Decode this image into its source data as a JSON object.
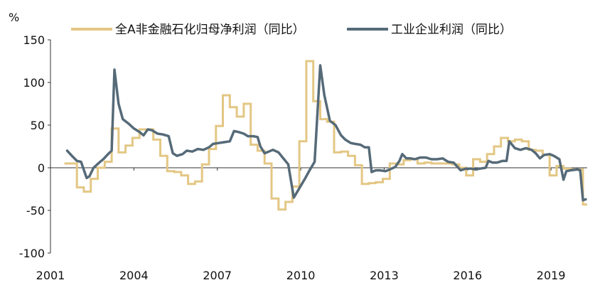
{
  "chart_data": {
    "type": "line",
    "ylabel": "%",
    "ylim": [
      -100,
      150
    ],
    "yticks": [
      "150",
      "100",
      "50",
      "0",
      "-50",
      "-100"
    ],
    "xlim": [
      2001,
      2020.3
    ],
    "xticks": [
      "2001",
      "2004",
      "2007",
      "2010",
      "2013",
      "2016",
      "2019"
    ],
    "grid": false,
    "legend_position": "top",
    "step_series": {
      "name": "全A非金融石化归母净利润（同比）",
      "color": "#e3c784",
      "points": [
        [
          2001.5,
          5
        ],
        [
          2001.95,
          5
        ],
        [
          2001.95,
          -23
        ],
        [
          2002.2,
          -23
        ],
        [
          2002.2,
          -28
        ],
        [
          2002.45,
          -28
        ],
        [
          2002.45,
          -13
        ],
        [
          2002.7,
          -13
        ],
        [
          2002.7,
          0
        ],
        [
          2002.95,
          0
        ],
        [
          2002.95,
          7
        ],
        [
          2003.2,
          7
        ],
        [
          2003.2,
          46
        ],
        [
          2003.45,
          46
        ],
        [
          2003.45,
          18
        ],
        [
          2003.7,
          18
        ],
        [
          2003.7,
          26
        ],
        [
          2003.95,
          26
        ],
        [
          2003.95,
          35
        ],
        [
          2004.2,
          35
        ],
        [
          2004.2,
          45
        ],
        [
          2004.7,
          45
        ],
        [
          2004.7,
          33
        ],
        [
          2004.95,
          33
        ],
        [
          2004.95,
          14
        ],
        [
          2005.2,
          14
        ],
        [
          2005.2,
          -4
        ],
        [
          2005.45,
          -4
        ],
        [
          2005.45,
          -5
        ],
        [
          2005.7,
          -5
        ],
        [
          2005.7,
          -9
        ],
        [
          2005.95,
          -9
        ],
        [
          2005.95,
          -19
        ],
        [
          2006.2,
          -19
        ],
        [
          2006.2,
          -16
        ],
        [
          2006.45,
          -16
        ],
        [
          2006.45,
          4
        ],
        [
          2006.7,
          4
        ],
        [
          2006.7,
          22
        ],
        [
          2006.95,
          22
        ],
        [
          2006.95,
          49
        ],
        [
          2007.2,
          49
        ],
        [
          2007.2,
          85
        ],
        [
          2007.45,
          85
        ],
        [
          2007.45,
          71
        ],
        [
          2007.7,
          71
        ],
        [
          2007.7,
          60
        ],
        [
          2007.95,
          60
        ],
        [
          2007.95,
          75
        ],
        [
          2008.2,
          75
        ],
        [
          2008.2,
          27
        ],
        [
          2008.45,
          27
        ],
        [
          2008.45,
          20
        ],
        [
          2008.7,
          20
        ],
        [
          2008.7,
          5
        ],
        [
          2008.95,
          5
        ],
        [
          2008.95,
          -36
        ],
        [
          2009.2,
          -36
        ],
        [
          2009.2,
          -49
        ],
        [
          2009.45,
          -49
        ],
        [
          2009.45,
          -40
        ],
        [
          2009.7,
          -40
        ],
        [
          2009.7,
          -22
        ],
        [
          2009.95,
          -22
        ],
        [
          2009.95,
          31
        ],
        [
          2010.2,
          31
        ],
        [
          2010.2,
          125
        ],
        [
          2010.45,
          125
        ],
        [
          2010.45,
          78
        ],
        [
          2010.7,
          78
        ],
        [
          2010.7,
          57
        ],
        [
          2010.95,
          57
        ],
        [
          2010.95,
          54
        ],
        [
          2011.2,
          54
        ],
        [
          2011.2,
          18
        ],
        [
          2011.45,
          18
        ],
        [
          2011.45,
          19
        ],
        [
          2011.7,
          19
        ],
        [
          2011.7,
          14
        ],
        [
          2011.95,
          14
        ],
        [
          2011.95,
          3
        ],
        [
          2012.2,
          3
        ],
        [
          2012.2,
          -19
        ],
        [
          2012.45,
          -19
        ],
        [
          2012.45,
          -18
        ],
        [
          2012.7,
          -18
        ],
        [
          2012.7,
          -17
        ],
        [
          2012.95,
          -17
        ],
        [
          2012.95,
          -13
        ],
        [
          2013.2,
          -13
        ],
        [
          2013.2,
          5
        ],
        [
          2013.45,
          5
        ],
        [
          2013.45,
          4
        ],
        [
          2013.7,
          4
        ],
        [
          2013.7,
          9
        ],
        [
          2013.95,
          9
        ],
        [
          2013.95,
          10
        ],
        [
          2014.2,
          10
        ],
        [
          2014.2,
          5
        ],
        [
          2014.45,
          5
        ],
        [
          2014.45,
          6
        ],
        [
          2014.7,
          6
        ],
        [
          2014.7,
          5
        ],
        [
          2014.95,
          5
        ],
        [
          2014.95,
          5
        ],
        [
          2015.2,
          5
        ],
        [
          2015.2,
          5
        ],
        [
          2015.45,
          5
        ],
        [
          2015.45,
          4
        ],
        [
          2015.7,
          4
        ],
        [
          2015.7,
          0
        ],
        [
          2015.95,
          0
        ],
        [
          2015.95,
          -9
        ],
        [
          2016.2,
          -9
        ],
        [
          2016.2,
          10
        ],
        [
          2016.45,
          10
        ],
        [
          2016.45,
          7
        ],
        [
          2016.7,
          7
        ],
        [
          2016.7,
          16
        ],
        [
          2016.95,
          16
        ],
        [
          2016.95,
          25
        ],
        [
          2017.2,
          25
        ],
        [
          2017.2,
          35
        ],
        [
          2017.45,
          35
        ],
        [
          2017.45,
          31
        ],
        [
          2017.7,
          31
        ],
        [
          2017.7,
          33
        ],
        [
          2017.95,
          33
        ],
        [
          2017.95,
          31
        ],
        [
          2018.2,
          31
        ],
        [
          2018.2,
          21
        ],
        [
          2018.45,
          21
        ],
        [
          2018.45,
          20
        ],
        [
          2018.7,
          20
        ],
        [
          2018.7,
          15
        ],
        [
          2018.95,
          15
        ],
        [
          2018.95,
          -9
        ],
        [
          2019.2,
          -9
        ],
        [
          2019.2,
          2
        ],
        [
          2019.45,
          2
        ],
        [
          2019.45,
          -1
        ],
        [
          2019.7,
          -1
        ],
        [
          2019.7,
          -2
        ],
        [
          2019.95,
          -2
        ],
        [
          2019.95,
          -2
        ],
        [
          2020.15,
          -2
        ],
        [
          2020.15,
          -43
        ],
        [
          2020.3,
          -43
        ]
      ]
    },
    "line_series": {
      "name": "工业企业利润（同比）",
      "color": "#566a78",
      "points": [
        [
          2001.6,
          20
        ],
        [
          2001.8,
          13
        ],
        [
          2001.95,
          8
        ],
        [
          2002.1,
          7
        ],
        [
          2002.3,
          -12
        ],
        [
          2002.4,
          -10
        ],
        [
          2002.55,
          0
        ],
        [
          2002.75,
          6
        ],
        [
          2002.9,
          10
        ],
        [
          2003.1,
          17
        ],
        [
          2003.2,
          20
        ],
        [
          2003.3,
          115
        ],
        [
          2003.45,
          75
        ],
        [
          2003.6,
          57
        ],
        [
          2003.8,
          52
        ],
        [
          2004.0,
          46
        ],
        [
          2004.2,
          42
        ],
        [
          2004.35,
          38
        ],
        [
          2004.5,
          45
        ],
        [
          2004.65,
          44
        ],
        [
          2004.85,
          40
        ],
        [
          2005.05,
          39
        ],
        [
          2005.25,
          37
        ],
        [
          2005.4,
          17
        ],
        [
          2005.55,
          14
        ],
        [
          2005.75,
          16
        ],
        [
          2005.9,
          20
        ],
        [
          2006.1,
          19
        ],
        [
          2006.3,
          22
        ],
        [
          2006.5,
          21
        ],
        [
          2006.7,
          24
        ],
        [
          2006.85,
          28
        ],
        [
          2007.05,
          29
        ],
        [
          2007.25,
          30
        ],
        [
          2007.45,
          31
        ],
        [
          2007.6,
          43
        ],
        [
          2007.75,
          42
        ],
        [
          2007.95,
          40
        ],
        [
          2008.1,
          37
        ],
        [
          2008.3,
          37
        ],
        [
          2008.45,
          36
        ],
        [
          2008.55,
          25
        ],
        [
          2008.7,
          17
        ],
        [
          2008.85,
          19
        ],
        [
          2009.0,
          21
        ],
        [
          2009.2,
          18
        ],
        [
          2009.4,
          10
        ],
        [
          2009.55,
          4
        ],
        [
          2009.75,
          -35
        ],
        [
          2009.95,
          -24
        ],
        [
          2010.15,
          -13
        ],
        [
          2010.3,
          -4
        ],
        [
          2010.5,
          7
        ],
        [
          2010.7,
          120
        ],
        [
          2010.85,
          85
        ],
        [
          2011.05,
          55
        ],
        [
          2011.25,
          50
        ],
        [
          2011.45,
          38
        ],
        [
          2011.6,
          33
        ],
        [
          2011.8,
          29
        ],
        [
          2011.95,
          28
        ],
        [
          2012.15,
          27
        ],
        [
          2012.3,
          24
        ],
        [
          2012.45,
          24
        ],
        [
          2012.55,
          -5
        ],
        [
          2012.7,
          -3
        ],
        [
          2012.85,
          -3
        ],
        [
          2013.05,
          -4
        ],
        [
          2013.2,
          -2
        ],
        [
          2013.4,
          1
        ],
        [
          2013.55,
          8
        ],
        [
          2013.65,
          16
        ],
        [
          2013.8,
          11
        ],
        [
          2013.95,
          11
        ],
        [
          2014.1,
          10
        ],
        [
          2014.3,
          12
        ],
        [
          2014.5,
          12
        ],
        [
          2014.7,
          10
        ],
        [
          2014.9,
          10
        ],
        [
          2015.1,
          11
        ],
        [
          2015.3,
          7
        ],
        [
          2015.5,
          6
        ],
        [
          2015.75,
          -3
        ],
        [
          2015.95,
          -1
        ],
        [
          2016.1,
          -1
        ],
        [
          2016.3,
          -2
        ],
        [
          2016.45,
          -1
        ],
        [
          2016.65,
          0
        ],
        [
          2016.75,
          8
        ],
        [
          2016.9,
          6
        ],
        [
          2017.05,
          6
        ],
        [
          2017.25,
          8
        ],
        [
          2017.4,
          8
        ],
        [
          2017.5,
          31
        ],
        [
          2017.7,
          23
        ],
        [
          2017.9,
          21
        ],
        [
          2018.1,
          23
        ],
        [
          2018.3,
          21
        ],
        [
          2018.45,
          17
        ],
        [
          2018.6,
          11
        ],
        [
          2018.75,
          15
        ],
        [
          2018.95,
          16
        ],
        [
          2019.1,
          14
        ],
        [
          2019.3,
          10
        ],
        [
          2019.45,
          -14
        ],
        [
          2019.55,
          -4
        ],
        [
          2019.7,
          -3
        ],
        [
          2019.95,
          -2
        ],
        [
          2020.05,
          -3
        ],
        [
          2020.15,
          -38
        ],
        [
          2020.25,
          -37
        ]
      ]
    }
  }
}
